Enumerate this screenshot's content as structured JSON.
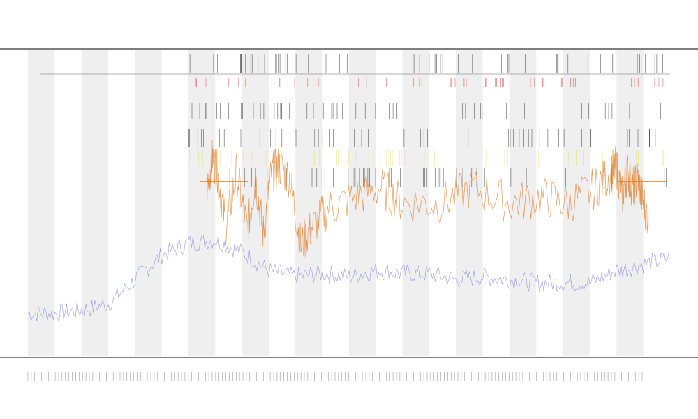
{
  "chart_data": {
    "type": "line",
    "title": "",
    "subtitle_1": "",
    "subtitle_2": "",
    "xlabel": "",
    "ylabel": "",
    "legend_position": "top-left",
    "legend_entries": [],
    "grid": false,
    "band_count": 12,
    "x_range": [
      0,
      1200
    ],
    "y_range": [
      0,
      100
    ],
    "colors": {
      "baseline_series": "#7777dd",
      "spike_series": "#dd7a22",
      "red_marks": "#e04040",
      "yellow_marks": "#e8e070",
      "dark_marks": "#333333",
      "band_fill": "#efefef",
      "axis": "#555555"
    },
    "series": [
      {
        "name": "",
        "color": "#7777dd",
        "x": [
          0,
          50,
          100,
          150,
          200,
          250,
          300,
          350,
          400,
          450,
          500,
          550,
          600,
          650,
          700,
          750,
          800,
          850,
          900,
          950,
          1000,
          1050,
          1100,
          1150,
          1200
        ],
        "y": [
          14,
          14,
          15,
          17,
          25,
          33,
          37,
          38,
          34,
          28,
          26,
          27,
          26,
          28,
          27,
          27,
          25,
          26,
          25,
          24,
          24,
          24,
          28,
          30,
          32
        ]
      },
      {
        "name": "",
        "color": "#dd7a22",
        "x": [
          335,
          345,
          355,
          370,
          390,
          410,
          425,
          440,
          455,
          470,
          490,
          510,
          530,
          560,
          610,
          660,
          700,
          770,
          830,
          900,
          960,
          1010,
          1060,
          1090,
          1100,
          1110,
          1120,
          1130,
          1140,
          1150,
          1160
        ],
        "y": [
          55,
          65,
          60,
          42,
          60,
          41,
          58,
          40,
          60,
          62,
          58,
          36,
          42,
          48,
          52,
          55,
          50,
          50,
          55,
          50,
          52,
          50,
          55,
          60,
          62,
          52,
          60,
          55,
          58,
          50,
          45
        ]
      }
    ]
  }
}
